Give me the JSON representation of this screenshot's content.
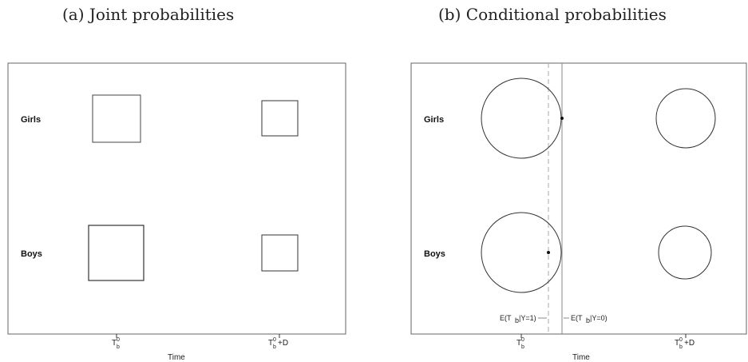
{
  "captions": {
    "a": "(a) Joint probabilities",
    "b": "(b) Conditional probabilities"
  },
  "chart_data": [
    {
      "type": "other",
      "panel": "a",
      "rows": [
        "Girls",
        "Boys"
      ],
      "columns": [
        "T_b^0",
        "T_b^0+D"
      ],
      "tick_labels": [
        {
          "base": "T",
          "sup": "0",
          "sub": "b",
          "suffix": ""
        },
        {
          "base": "T",
          "sup": "0",
          "sub": "b",
          "suffix": "+D"
        }
      ],
      "xlabel": "Time",
      "marker": "square",
      "relative_sizes": {
        "Girls": [
          1.0,
          0.78
        ],
        "Boys": [
          1.15,
          0.78
        ]
      }
    },
    {
      "type": "other",
      "panel": "b",
      "rows": [
        "Girls",
        "Boys"
      ],
      "columns": [
        "T_b^0",
        "T_b^0+D"
      ],
      "tick_labels": [
        {
          "base": "T",
          "sup": "0",
          "sub": "b",
          "suffix": ""
        },
        {
          "base": "T",
          "sup": "0",
          "sub": "b",
          "suffix": "+D"
        }
      ],
      "xlabel": "Time",
      "marker": "circle",
      "relative_sizes": {
        "Girls": [
          1.0,
          0.62
        ],
        "Boys": [
          1.0,
          0.59
        ]
      },
      "reference_lines": [
        {
          "label": "E(T_b|Y=1)",
          "style": "dashed"
        },
        {
          "label": "E(T_b|Y=0)",
          "style": "solid"
        }
      ],
      "annotation_labels": [
        {
          "pre": "E(T",
          "sub": "b",
          "post": "|Y=1)"
        },
        {
          "pre": "E(T",
          "sub": "b",
          "post": "|Y=0)"
        }
      ]
    }
  ]
}
